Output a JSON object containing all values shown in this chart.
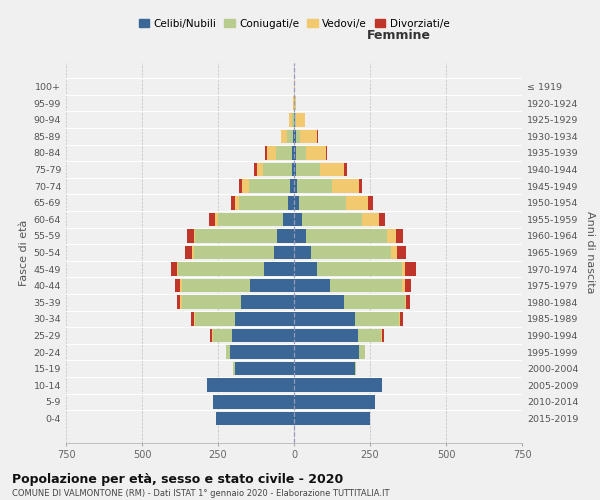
{
  "age_groups_bottom_to_top": [
    "0-4",
    "5-9",
    "10-14",
    "15-19",
    "20-24",
    "25-29",
    "30-34",
    "35-39",
    "40-44",
    "45-49",
    "50-54",
    "55-59",
    "60-64",
    "65-69",
    "70-74",
    "75-79",
    "80-84",
    "85-89",
    "90-94",
    "95-99",
    "100+"
  ],
  "birth_years_bottom_to_top": [
    "2015-2019",
    "2010-2014",
    "2005-2009",
    "2000-2004",
    "1995-1999",
    "1990-1994",
    "1985-1989",
    "1980-1984",
    "1975-1979",
    "1970-1974",
    "1965-1969",
    "1960-1964",
    "1955-1959",
    "1950-1954",
    "1945-1949",
    "1940-1944",
    "1935-1939",
    "1930-1934",
    "1925-1929",
    "1920-1924",
    "≤ 1919"
  ],
  "colors": {
    "celibe": "#3a6795",
    "coniugato": "#b8cc8e",
    "vedovo": "#f2c96e",
    "divorziato": "#c0352a"
  },
  "males": {
    "celibe": [
      255,
      268,
      285,
      195,
      210,
      205,
      195,
      175,
      145,
      100,
      65,
      55,
      35,
      20,
      12,
      8,
      5,
      2,
      0,
      0,
      0
    ],
    "coniugato": [
      0,
      0,
      0,
      5,
      15,
      60,
      130,
      195,
      225,
      280,
      265,
      270,
      215,
      160,
      135,
      95,
      55,
      20,
      5,
      0,
      0
    ],
    "vedovo": [
      0,
      0,
      0,
      0,
      0,
      5,
      5,
      5,
      5,
      5,
      5,
      5,
      10,
      15,
      25,
      20,
      30,
      20,
      10,
      2,
      0
    ],
    "divorziato": [
      0,
      0,
      0,
      0,
      0,
      5,
      10,
      10,
      18,
      20,
      22,
      22,
      18,
      12,
      10,
      8,
      5,
      0,
      0,
      0,
      0
    ]
  },
  "females": {
    "nubile": [
      250,
      265,
      290,
      200,
      215,
      210,
      200,
      165,
      120,
      75,
      55,
      40,
      25,
      15,
      10,
      5,
      5,
      5,
      2,
      0,
      0
    ],
    "coniugata": [
      0,
      0,
      0,
      5,
      20,
      75,
      145,
      200,
      235,
      280,
      265,
      265,
      200,
      155,
      115,
      80,
      35,
      15,
      5,
      2,
      0
    ],
    "vedova": [
      0,
      0,
      0,
      0,
      0,
      5,
      5,
      5,
      10,
      10,
      20,
      30,
      55,
      75,
      90,
      80,
      65,
      55,
      30,
      5,
      2
    ],
    "divorziata": [
      0,
      0,
      0,
      0,
      0,
      5,
      10,
      10,
      20,
      35,
      28,
      25,
      18,
      15,
      10,
      10,
      5,
      5,
      0,
      0,
      0
    ]
  },
  "xlim": 750,
  "title": "Popolazione per età, sesso e stato civile - 2020",
  "subtitle": "COMUNE DI VALMONTONE (RM) - Dati ISTAT 1° gennaio 2020 - Elaborazione TUTTITALIA.IT",
  "ylabel_left": "Fasce di età",
  "ylabel_right": "Anni di nascita",
  "label_femmine": "Femmine",
  "background_color": "#f0f0f0",
  "plot_bg": "#f0f0f0"
}
